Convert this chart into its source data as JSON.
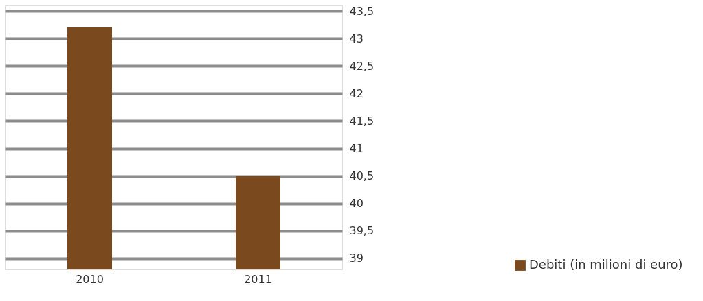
{
  "chart_data": {
    "type": "bar",
    "categories": [
      "2010",
      "2011"
    ],
    "series": [
      {
        "name": "Debiti (in milioni di euro)",
        "color": "#7a4a1e",
        "values": [
          43.2,
          40.5
        ]
      }
    ],
    "ylim": [
      38.8,
      43.6
    ],
    "yticks": [
      {
        "value": 39,
        "label": "39"
      },
      {
        "value": 39.5,
        "label": "39,5"
      },
      {
        "value": 40,
        "label": "40"
      },
      {
        "value": 40.5,
        "label": "40,5"
      },
      {
        "value": 41,
        "label": "41"
      },
      {
        "value": 41.5,
        "label": "41,5"
      },
      {
        "value": 42,
        "label": "42"
      },
      {
        "value": 42.5,
        "label": "42,5"
      },
      {
        "value": 43,
        "label": "43"
      },
      {
        "value": 43.5,
        "label": "43,5"
      }
    ],
    "grid": "y",
    "legend": "bottom right"
  }
}
